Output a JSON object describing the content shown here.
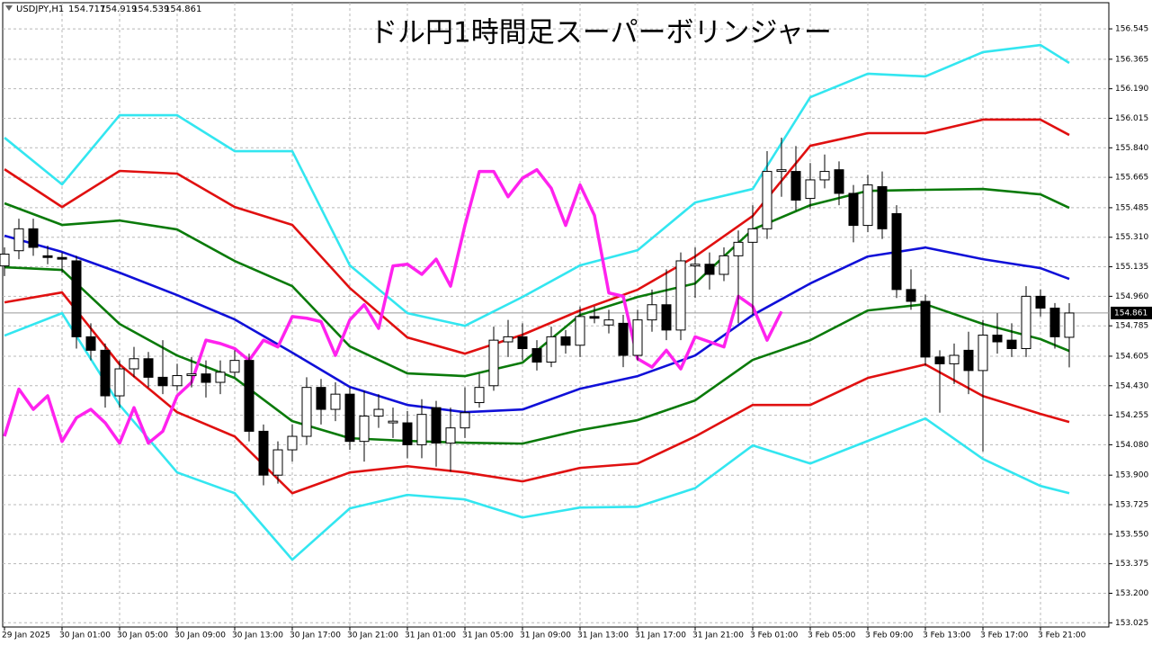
{
  "chart_data": {
    "type": "candlestick",
    "title": "ドル円1時間足スーパーボリンジャー",
    "symbol": "USDJPY,H1",
    "categories": [
      "29 Jan 2025",
      null,
      null,
      null,
      "30 Jan 01:00",
      null,
      null,
      null,
      "30 Jan 05:00",
      null,
      null,
      null,
      "30 Jan 09:00",
      null,
      null,
      null,
      "30 Jan 13:00",
      null,
      null,
      null,
      "30 Jan 17:00",
      null,
      null,
      null,
      "30 Jan 21:00",
      null,
      null,
      null,
      "31 Jan 01:00",
      null,
      null,
      null,
      "31 Jan 05:00",
      null,
      null,
      null,
      "31 Jan 09:00",
      null,
      null,
      null,
      "31 Jan 13:00",
      null,
      null,
      null,
      "31 Jan 17:00",
      null,
      null,
      null,
      "31 Jan 21:00",
      null,
      null,
      null,
      "3 Feb 01:00",
      null,
      null,
      null,
      "3 Feb 05:00",
      null,
      null,
      null,
      "3 Feb 09:00",
      null,
      null,
      null,
      "3 Feb 13:00",
      null,
      null,
      null,
      "3 Feb 17:00",
      null,
      null,
      null,
      "3 Feb 21:00",
      null,
      null
    ],
    "open": [
      155.14,
      155.23,
      155.36,
      155.2,
      155.19,
      155.17,
      154.72,
      154.64,
      154.37,
      154.53,
      154.59,
      154.48,
      154.43,
      154.49,
      154.5,
      154.45,
      154.51,
      154.58,
      154.16,
      153.9,
      154.05,
      154.13,
      154.42,
      154.29,
      154.38,
      154.1,
      154.25,
      154.21,
      154.21,
      154.08,
      154.3,
      154.09,
      154.18,
      154.33,
      154.43,
      154.69,
      154.72,
      154.65,
      154.57,
      154.72,
      154.67,
      154.84,
      154.79,
      154.8,
      154.61,
      154.82,
      154.91,
      154.76,
      155.14,
      155.15,
      155.09,
      155.2,
      155.28,
      155.36,
      155.7,
      155.7,
      155.54,
      155.65,
      155.71,
      155.57,
      155.38,
      155.61,
      155.45,
      155.0,
      154.93,
      154.6,
      154.56,
      154.64,
      154.52,
      154.73,
      154.7,
      154.65,
      154.96,
      154.89,
      154.717
    ],
    "high": [
      155.25,
      155.42,
      155.42,
      155.26,
      155.22,
      155.2,
      154.8,
      154.68,
      154.58,
      154.66,
      154.63,
      154.7,
      154.56,
      154.6,
      154.58,
      154.58,
      154.64,
      154.62,
      154.2,
      154.1,
      154.2,
      154.48,
      154.47,
      154.45,
      154.42,
      154.4,
      154.38,
      154.3,
      154.28,
      154.35,
      154.34,
      154.3,
      154.42,
      154.5,
      154.78,
      154.82,
      154.8,
      154.7,
      154.78,
      154.76,
      154.9,
      154.9,
      154.88,
      154.85,
      154.88,
      155.0,
      155.12,
      155.22,
      155.25,
      155.22,
      155.25,
      155.35,
      155.5,
      155.82,
      155.9,
      155.85,
      155.75,
      155.8,
      155.76,
      155.62,
      155.68,
      155.7,
      155.5,
      155.12,
      154.97,
      154.64,
      154.68,
      154.75,
      154.82,
      154.86,
      154.8,
      155.02,
      155.0,
      154.92,
      154.919
    ],
    "low": [
      155.08,
      155.18,
      155.2,
      155.15,
      155.1,
      154.65,
      154.58,
      154.3,
      154.3,
      154.48,
      154.42,
      154.38,
      154.4,
      154.42,
      154.36,
      154.38,
      154.48,
      154.1,
      153.84,
      153.85,
      153.98,
      154.08,
      154.2,
      154.22,
      154.05,
      153.98,
      154.18,
      154.12,
      154.0,
      154.0,
      153.95,
      153.92,
      154.12,
      154.3,
      154.4,
      154.6,
      154.58,
      154.52,
      154.54,
      154.62,
      154.6,
      154.8,
      154.74,
      154.54,
      154.58,
      154.75,
      154.7,
      154.7,
      154.95,
      155.0,
      155.05,
      154.8,
      154.85,
      155.3,
      155.55,
      155.47,
      155.48,
      155.6,
      155.5,
      155.28,
      155.34,
      155.3,
      154.95,
      154.88,
      154.55,
      154.27,
      154.44,
      154.38,
      154.04,
      154.62,
      154.6,
      154.6,
      154.84,
      154.65,
      154.539
    ],
    "close": [
      155.21,
      155.36,
      155.25,
      155.19,
      155.18,
      154.72,
      154.64,
      154.37,
      154.53,
      154.59,
      154.48,
      154.43,
      154.49,
      154.5,
      154.45,
      154.51,
      154.58,
      154.16,
      153.9,
      154.05,
      154.13,
      154.42,
      154.29,
      154.38,
      154.1,
      154.25,
      154.29,
      154.22,
      154.08,
      154.26,
      154.09,
      154.18,
      154.27,
      154.42,
      154.7,
      154.72,
      154.65,
      154.57,
      154.72,
      154.67,
      154.84,
      154.83,
      154.82,
      154.61,
      154.82,
      154.91,
      154.76,
      155.17,
      155.15,
      155.09,
      155.2,
      155.28,
      155.36,
      155.7,
      155.71,
      155.53,
      155.65,
      155.7,
      155.57,
      155.38,
      155.62,
      155.36,
      155.0,
      154.93,
      154.6,
      154.56,
      154.61,
      154.52,
      154.73,
      154.69,
      154.65,
      154.96,
      154.89,
      154.72,
      154.861
    ],
    "series": [
      {
        "color": "#33e6f0",
        "x": [
          0,
          4,
          8,
          12,
          16,
          20,
          24,
          28,
          32,
          36,
          40,
          44,
          48,
          52,
          56,
          60,
          64,
          68,
          72,
          74
        ],
        "values": [
          155.9,
          155.623,
          156.033,
          156.033,
          155.82,
          155.82,
          155.143,
          154.86,
          154.785,
          154.956,
          155.143,
          155.233,
          155.516,
          155.596,
          156.14,
          156.279,
          156.263,
          156.407,
          156.449,
          156.343
        ]
      },
      {
        "color": "#e01010",
        "x": [
          0,
          4,
          8,
          12,
          16,
          20,
          24,
          28,
          32,
          36,
          40,
          44,
          48,
          52,
          56,
          60,
          64,
          68,
          72,
          74
        ],
        "values": [
          155.713,
          155.489,
          155.703,
          155.687,
          155.489,
          155.383,
          155.009,
          154.716,
          154.62,
          154.732,
          154.876,
          154.999,
          155.196,
          155.436,
          155.852,
          155.927,
          155.927,
          156.007,
          156.007,
          155.916
        ]
      },
      {
        "color": "#0a7a0a",
        "x": [
          0,
          4,
          8,
          12,
          16,
          20,
          24,
          28,
          32,
          36,
          40,
          44,
          48,
          52,
          56,
          60,
          64,
          68,
          72,
          74
        ],
        "values": [
          155.511,
          155.383,
          155.409,
          155.356,
          155.169,
          155.02,
          154.663,
          154.503,
          154.487,
          154.567,
          154.849,
          154.956,
          155.036,
          155.356,
          155.5,
          155.585,
          155.591,
          155.596,
          155.564,
          155.484
        ]
      },
      {
        "color": "#1010d8",
        "x": [
          0,
          4,
          8,
          12,
          16,
          20,
          24,
          28,
          32,
          36,
          40,
          44,
          48,
          52,
          56,
          60,
          64,
          68,
          72,
          74
        ],
        "values": [
          155.319,
          155.223,
          155.1,
          154.967,
          154.823,
          154.626,
          154.423,
          154.316,
          154.273,
          154.289,
          154.412,
          154.487,
          154.609,
          154.849,
          155.036,
          155.196,
          155.249,
          155.18,
          155.127,
          155.063
        ]
      },
      {
        "color": "#0a7a0a",
        "x": [
          0,
          4,
          8,
          12,
          16,
          20,
          24,
          28,
          32,
          36,
          40,
          44,
          48,
          52,
          56,
          60,
          64,
          68,
          72,
          74
        ],
        "values": [
          155.132,
          155.116,
          154.796,
          154.609,
          154.476,
          154.22,
          154.119,
          154.103,
          154.092,
          154.087,
          154.167,
          154.226,
          154.343,
          154.583,
          154.7,
          154.876,
          154.913,
          154.796,
          154.706,
          154.636
        ]
      },
      {
        "color": "#e01010",
        "x": [
          0,
          4,
          8,
          12,
          16,
          20,
          24,
          28,
          32,
          36,
          40,
          44,
          48,
          52,
          56,
          60,
          64,
          68,
          72,
          74
        ],
        "values": [
          154.924,
          154.983,
          154.556,
          154.273,
          154.129,
          153.793,
          153.916,
          153.953,
          153.916,
          153.863,
          153.943,
          153.969,
          154.129,
          154.316,
          154.316,
          154.476,
          154.556,
          154.369,
          154.263,
          154.215
        ]
      },
      {
        "color": "#33e6f0",
        "x": [
          0,
          4,
          8,
          12,
          16,
          20,
          24,
          28,
          32,
          36,
          40,
          44,
          48,
          52,
          56,
          60,
          64,
          68,
          72,
          74
        ],
        "values": [
          154.727,
          154.86,
          154.316,
          153.916,
          153.793,
          153.399,
          153.703,
          153.783,
          153.756,
          153.649,
          153.708,
          153.713,
          153.823,
          154.076,
          153.969,
          154.103,
          154.236,
          153.996,
          153.836,
          153.793
        ]
      },
      {
        "color": "#ff22ee",
        "x": [
          0,
          1,
          2,
          3,
          4,
          5,
          6,
          7,
          8,
          9,
          10,
          11,
          12,
          13,
          14,
          15,
          16,
          17,
          18,
          19,
          20,
          21,
          22,
          23,
          24,
          25,
          26,
          27,
          28,
          29,
          30,
          31,
          32,
          33,
          34,
          35,
          36,
          37,
          38,
          39,
          40,
          41,
          42,
          43,
          44,
          45,
          46,
          47,
          48,
          49,
          50,
          51,
          52,
          53,
          54
        ],
        "values": [
          154.13,
          154.41,
          154.29,
          154.37,
          154.1,
          154.24,
          154.29,
          154.21,
          154.09,
          154.3,
          154.09,
          154.16,
          154.37,
          154.45,
          154.7,
          154.68,
          154.65,
          154.58,
          154.7,
          154.66,
          154.84,
          154.83,
          154.81,
          154.61,
          154.82,
          154.91,
          154.77,
          155.14,
          155.15,
          155.09,
          155.18,
          155.02,
          155.38,
          155.7,
          155.7,
          155.55,
          155.66,
          155.71,
          155.6,
          155.38,
          155.62,
          155.44,
          154.98,
          154.96,
          154.59,
          154.54,
          154.64,
          154.53,
          154.72,
          154.69,
          154.66,
          154.96,
          154.9,
          154.7,
          154.87
        ]
      }
    ],
    "ylim": [
      153.0,
      156.7
    ],
    "yticks": [
      156.545,
      156.365,
      {
        "value": 156.19,
        "label": "156.190"
      },
      156.015,
      {
        "value": 155.84,
        "label": "155.840"
      },
      155.665,
      155.485,
      {
        "value": 155.31,
        "label": "155.310"
      },
      155.135,
      {
        "value": 154.96,
        "label": "154.960"
      },
      154.785,
      154.605,
      {
        "value": 154.43,
        "label": "154.430"
      },
      154.255,
      {
        "value": 154.08,
        "label": "154.080"
      },
      {
        "value": 153.9,
        "label": "153.900"
      },
      153.725,
      {
        "value": 153.55,
        "label": "153.550"
      },
      153.375,
      {
        "value": 153.2,
        "label": "153.200"
      },
      153.025
    ],
    "grid": true
  }
}
